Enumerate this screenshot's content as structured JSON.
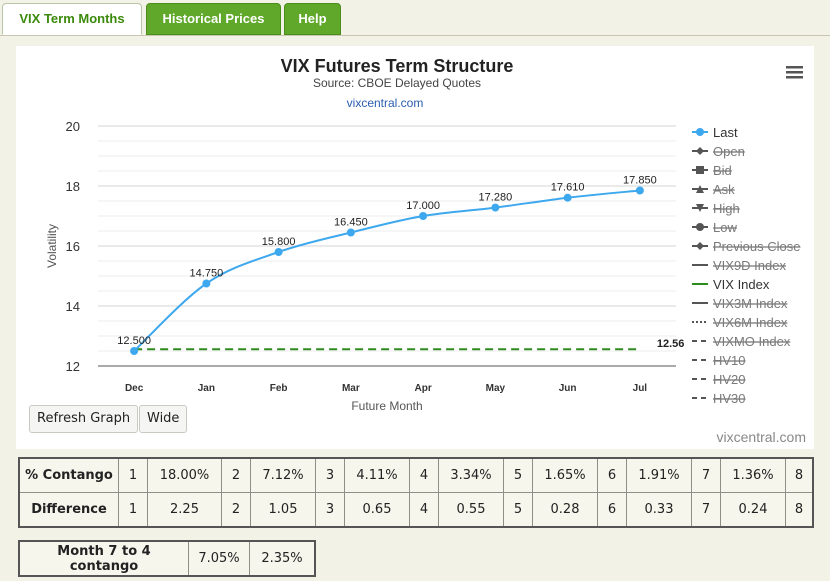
{
  "tabs": [
    {
      "label": "VIX Term Months",
      "active": true
    },
    {
      "label": "Historical Prices",
      "active": false
    },
    {
      "label": "Help",
      "active": false
    }
  ],
  "chart_data": {
    "type": "line",
    "title": "VIX Futures Term Structure",
    "subtitle": "Source: CBOE Delayed Quotes",
    "link_text": "vixcentral.com",
    "xlabel": "Future Month",
    "ylabel": "Volatility",
    "categories": [
      "Dec",
      "Jan",
      "Feb",
      "Mar",
      "Apr",
      "May",
      "Jun",
      "Jul"
    ],
    "yticks": [
      "12",
      "14",
      "16",
      "18",
      "20"
    ],
    "ylim": [
      12,
      20
    ],
    "grid": true,
    "series": [
      {
        "name": "Last",
        "values": [
          12.5,
          14.75,
          15.8,
          16.45,
          17.0,
          17.28,
          17.61,
          17.85
        ],
        "labels": [
          "12.500",
          "14.750",
          "15.800",
          "16.450",
          "17.000",
          "17.280",
          "17.610",
          "17.850"
        ],
        "color": "#3ea8ee"
      },
      {
        "name": "VIX Index",
        "values": [
          12.56,
          12.56,
          12.56,
          12.56,
          12.56,
          12.56,
          12.56,
          12.56
        ],
        "end_label": "12.56",
        "color": "#2e8b1e",
        "dashed": true
      }
    ],
    "legend_position": "right",
    "legend": [
      {
        "name": "Last",
        "symbol": "circle-line",
        "hidden": false
      },
      {
        "name": "Open",
        "symbol": "diamond-line",
        "hidden": true
      },
      {
        "name": "Bid",
        "symbol": "square-line",
        "hidden": true
      },
      {
        "name": "Ask",
        "symbol": "triangle-line",
        "hidden": true
      },
      {
        "name": "High",
        "symbol": "triangle-down-line",
        "hidden": true
      },
      {
        "name": "Low",
        "symbol": "circle-line",
        "hidden": true
      },
      {
        "name": "Previous Close",
        "symbol": "diamond-line",
        "hidden": true
      },
      {
        "name": "VIX9D Index",
        "symbol": "solid-line",
        "hidden": true
      },
      {
        "name": "VIX Index",
        "symbol": "solid-line",
        "hidden": false
      },
      {
        "name": "VIX3M Index",
        "symbol": "solid-line",
        "hidden": true
      },
      {
        "name": "VIX6M Index",
        "symbol": "dotted-line",
        "hidden": true
      },
      {
        "name": "VIXMO Index",
        "symbol": "dashed-line",
        "hidden": true
      },
      {
        "name": "HV10",
        "symbol": "dashed-line",
        "hidden": true
      },
      {
        "name": "HV20",
        "symbol": "dashed-line",
        "hidden": true
      },
      {
        "name": "HV30",
        "symbol": "dashed-line",
        "hidden": true
      }
    ]
  },
  "menu_icon": "hamburger-menu-icon",
  "buttons": {
    "refresh": "Refresh Graph",
    "wide": "Wide"
  },
  "credit": "vixcentral.com",
  "contango_table": {
    "rows": [
      {
        "label": "% Contango",
        "cells": [
          [
            "1",
            "18.00%"
          ],
          [
            "2",
            "7.12%"
          ],
          [
            "3",
            "4.11%"
          ],
          [
            "4",
            "3.34%"
          ],
          [
            "5",
            "1.65%"
          ],
          [
            "6",
            "1.91%"
          ],
          [
            "7",
            "1.36%"
          ]
        ],
        "last": "8"
      },
      {
        "label": "Difference",
        "cells": [
          [
            "1",
            "2.25"
          ],
          [
            "2",
            "1.05"
          ],
          [
            "3",
            "0.65"
          ],
          [
            "4",
            "0.55"
          ],
          [
            "5",
            "0.28"
          ],
          [
            "6",
            "0.33"
          ],
          [
            "7",
            "0.24"
          ]
        ],
        "last": "8"
      }
    ]
  },
  "month_table": {
    "label": "Month 7 to 4 contango",
    "v1": "7.05%",
    "v2": "2.35%"
  }
}
